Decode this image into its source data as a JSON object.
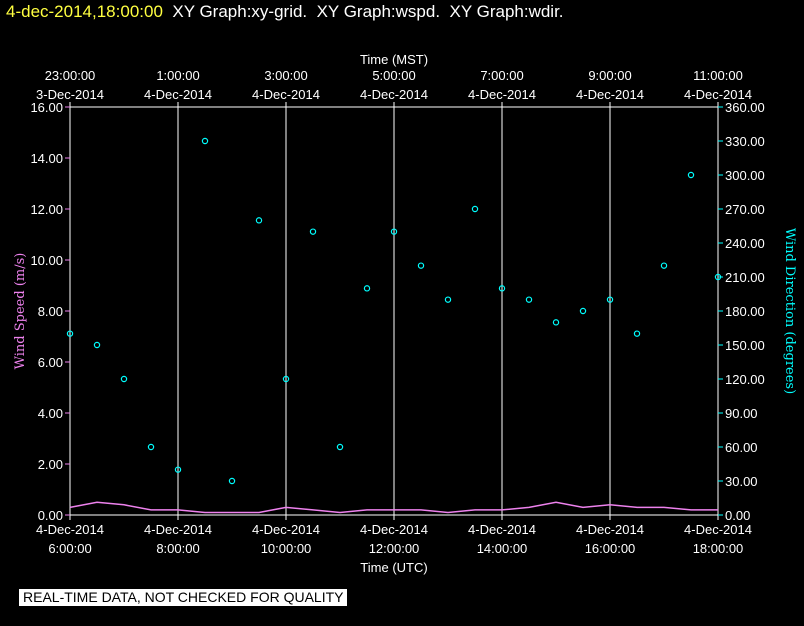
{
  "header": {
    "timestamp": "4-dec-2014,18:00:00",
    "graph_titles": "  XY Graph:xy-grid.  XY Graph:wspd.  XY Graph:wdir."
  },
  "footer": {
    "notice": "REAL-TIME DATA, NOT CHECKED FOR QUALITY"
  },
  "colors": {
    "speed": "#ee82ee",
    "direction": "#00ffff",
    "grid": "#ffffff",
    "timestamp": "#ffff40"
  },
  "chart_data": {
    "type": "scatter",
    "top_axis": {
      "label": "Time (MST)",
      "ticks": [
        {
          "time": "23:00:00",
          "date": "3-Dec-2014"
        },
        {
          "time": "1:00:00",
          "date": "4-Dec-2014"
        },
        {
          "time": "3:00:00",
          "date": "4-Dec-2014"
        },
        {
          "time": "5:00:00",
          "date": "4-Dec-2014"
        },
        {
          "time": "7:00:00",
          "date": "4-Dec-2014"
        },
        {
          "time": "9:00:00",
          "date": "4-Dec-2014"
        },
        {
          "time": "11:00:00",
          "date": "4-Dec-2014"
        }
      ]
    },
    "bottom_axis": {
      "label": "Time (UTC)",
      "range": [
        "2014-12-04 06:00",
        "2014-12-04 18:00"
      ],
      "ticks": [
        {
          "date": "4-Dec-2014",
          "time": "6:00:00"
        },
        {
          "date": "4-Dec-2014",
          "time": "8:00:00"
        },
        {
          "date": "4-Dec-2014",
          "time": "10:00:00"
        },
        {
          "date": "4-Dec-2014",
          "time": "12:00:00"
        },
        {
          "date": "4-Dec-2014",
          "time": "14:00:00"
        },
        {
          "date": "4-Dec-2014",
          "time": "16:00:00"
        },
        {
          "date": "4-Dec-2014",
          "time": "18:00:00"
        }
      ]
    },
    "y_left": {
      "label": "Wind Speed (m/s)",
      "ylim": [
        0,
        16
      ],
      "ticks": [
        "0.00",
        "2.00",
        "4.00",
        "6.00",
        "8.00",
        "10.00",
        "12.00",
        "14.00",
        "16.00"
      ]
    },
    "y_right": {
      "label": "Wind Direction (degrees)",
      "ylim": [
        0,
        360
      ],
      "ticks": [
        "0.00",
        "30.00",
        "60.00",
        "90.00",
        "120.00",
        "150.00",
        "180.00",
        "210.00",
        "240.00",
        "270.00",
        "300.00",
        "330.00",
        "360.00"
      ]
    },
    "grid": true,
    "series": [
      {
        "name": "wspd",
        "axis": "left",
        "style": "line",
        "x": [
          "06:00",
          "06:30",
          "07:00",
          "07:30",
          "08:00",
          "08:30",
          "09:00",
          "09:30",
          "10:00",
          "10:30",
          "11:00",
          "11:30",
          "12:00",
          "12:30",
          "13:00",
          "13:30",
          "14:00",
          "14:30",
          "15:00",
          "15:30",
          "16:00",
          "16:30",
          "17:00",
          "17:30",
          "18:00"
        ],
        "values": [
          0.3,
          0.5,
          0.4,
          0.2,
          0.2,
          0.1,
          0.1,
          0.1,
          0.3,
          0.2,
          0.1,
          0.2,
          0.2,
          0.2,
          0.1,
          0.2,
          0.2,
          0.3,
          0.5,
          0.3,
          0.4,
          0.3,
          0.3,
          0.2,
          0.2
        ]
      },
      {
        "name": "wdir",
        "axis": "right",
        "style": "markers",
        "x": [
          "06:00",
          "06:30",
          "07:00",
          "07:30",
          "08:00",
          "08:30",
          "09:00",
          "09:30",
          "10:00",
          "10:30",
          "11:00",
          "11:30",
          "12:00",
          "12:30",
          "13:00",
          "13:30",
          "14:00",
          "14:30",
          "15:00",
          "15:30",
          "16:00",
          "16:30",
          "17:00",
          "17:30",
          "18:00"
        ],
        "values": [
          160,
          150,
          120,
          60,
          40,
          330,
          30,
          260,
          120,
          250,
          60,
          200,
          250,
          220,
          190,
          270,
          200,
          190,
          170,
          180,
          190,
          160,
          220,
          300,
          210
        ]
      }
    ]
  }
}
